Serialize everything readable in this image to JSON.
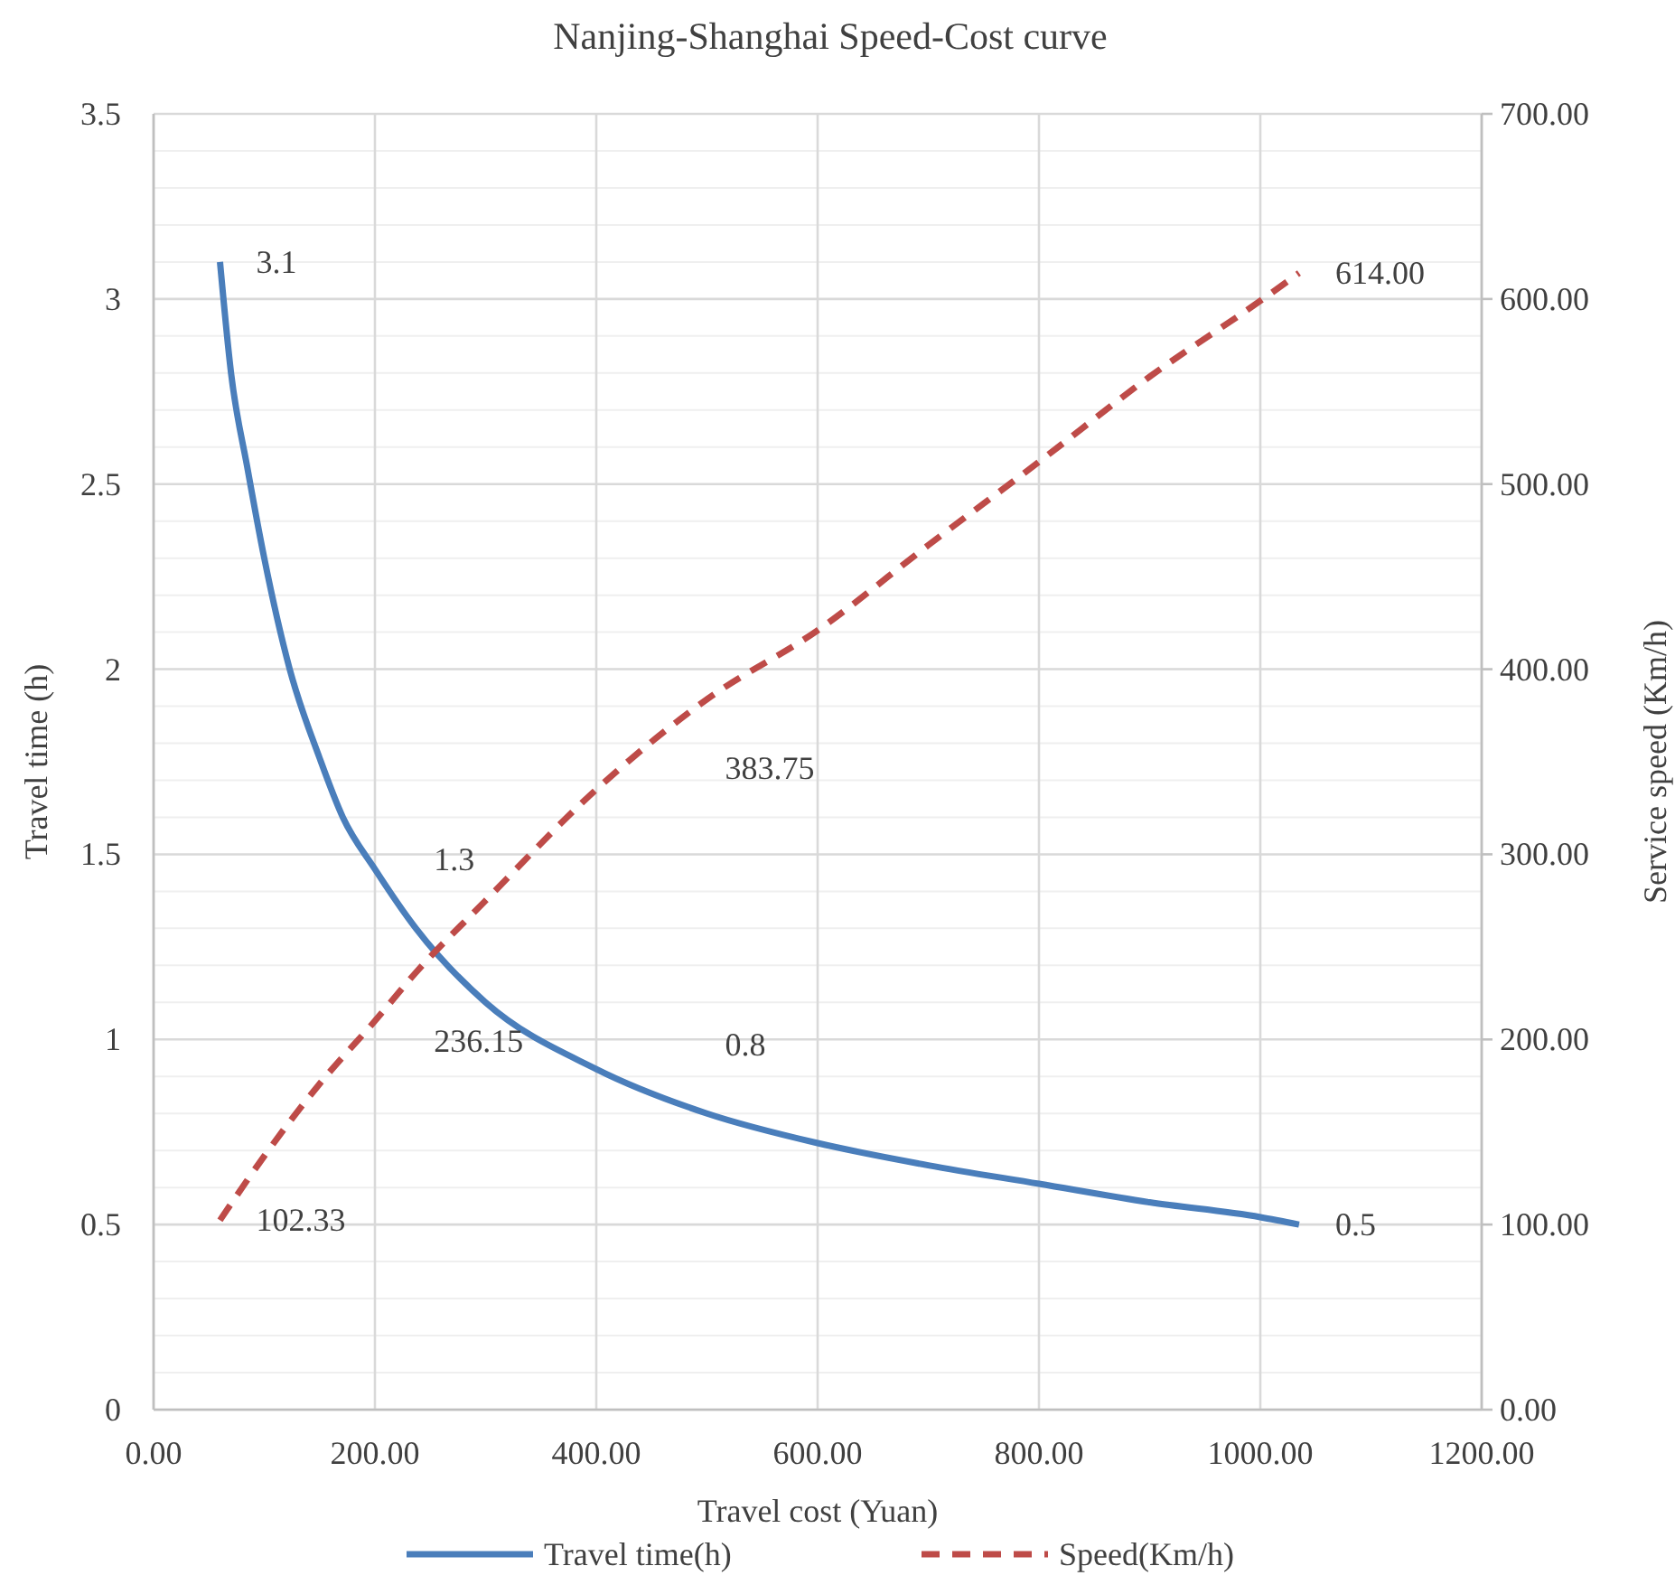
{
  "chart_data": {
    "type": "line",
    "title": "Nanjing-Shanghai Speed-Cost curve",
    "xlabel": "Travel cost (Yuan)",
    "ylabel": "Travel time (h)",
    "y2label": "Service speed (Km/h)",
    "xlim": [
      0,
      1200
    ],
    "xticks": [
      {
        "value": 0,
        "label": "0.00"
      },
      {
        "value": 200,
        "label": "200.00"
      },
      {
        "value": 400,
        "label": "400.00"
      },
      {
        "value": 600,
        "label": "600.00"
      },
      {
        "value": 800,
        "label": "800.00"
      },
      {
        "value": 1000,
        "label": "1000.00"
      },
      {
        "value": 1200,
        "label": "1200.00"
      }
    ],
    "ylim": [
      0,
      3.5
    ],
    "yticks": [
      0,
      0.5,
      1,
      1.5,
      2,
      2.5,
      3,
      3.5
    ],
    "y2lim": [
      0,
      700
    ],
    "y2ticks": [
      {
        "value": 0,
        "label": "0.00"
      },
      {
        "value": 100,
        "label": "100.00"
      },
      {
        "value": 200,
        "label": "200.00"
      },
      {
        "value": 300,
        "label": "300.00"
      },
      {
        "value": 400,
        "label": "400.00"
      },
      {
        "value": 500,
        "label": "500.00"
      },
      {
        "value": 600,
        "label": "600.00"
      },
      {
        "value": 700,
        "label": "700.00"
      }
    ],
    "grid": true,
    "legend": "bottom",
    "marker": "none",
    "series": [
      {
        "name": "Travel time(h)",
        "color": "#4a7ebb",
        "line_style": "solid",
        "x": [
          60,
          70,
          85,
          100,
          123,
          150,
          171,
          200,
          237,
          300,
          400,
          500,
          600,
          700,
          800,
          900,
          1000,
          1035
        ],
        "values": [
          3.1,
          2.8,
          2.54,
          2.3,
          2.0,
          1.76,
          1.6,
          1.46,
          1.3,
          1.1,
          0.92,
          0.8,
          0.72,
          0.66,
          0.61,
          0.56,
          0.52,
          0.5
        ],
        "value_labels": [
          "3.1",
          null,
          null,
          null,
          null,
          null,
          null,
          null,
          "1.3",
          null,
          null,
          "0.8",
          null,
          null,
          null,
          null,
          null,
          "0.5"
        ]
      },
      {
        "name": "Speed(Km/h)",
        "color": "#be4b48",
        "line_style": "dashed",
        "axis": "y2",
        "x": [
          60,
          100,
          150,
          200,
          237,
          300,
          400,
          500,
          600,
          700,
          800,
          900,
          1000,
          1035
        ],
        "values": [
          102.33,
          137,
          176,
          210,
          236.15,
          275,
          335,
          383.75,
          421,
          467,
          512,
          558,
          599,
          614
        ],
        "value_labels": [
          "102.33",
          null,
          null,
          null,
          "236.15",
          null,
          null,
          "383.75",
          null,
          null,
          null,
          null,
          null,
          "614.00"
        ]
      }
    ]
  }
}
